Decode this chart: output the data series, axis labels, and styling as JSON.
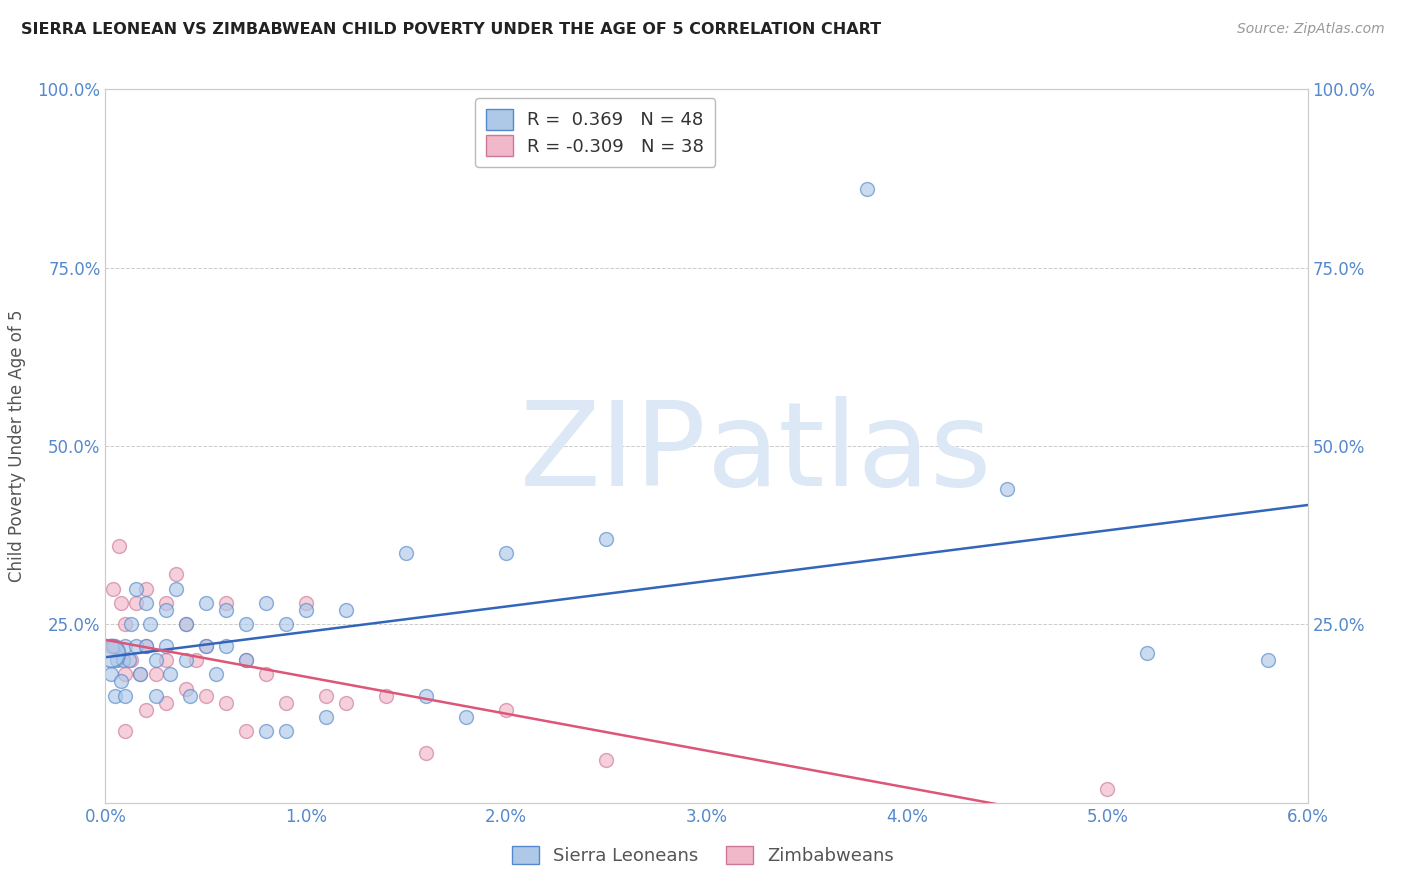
{
  "title": "SIERRA LEONEAN VS ZIMBABWEAN CHILD POVERTY UNDER THE AGE OF 5 CORRELATION CHART",
  "source": "Source: ZipAtlas.com",
  "label_blue": "Sierra Leoneans",
  "label_pink": "Zimbabweans",
  "ylabel": "Child Poverty Under the Age of 5",
  "xlim": [
    0.0,
    0.06
  ],
  "ylim": [
    0.0,
    1.0
  ],
  "xticks": [
    0.0,
    0.01,
    0.02,
    0.03,
    0.04,
    0.05,
    0.06
  ],
  "xticklabels": [
    "0.0%",
    "1.0%",
    "2.0%",
    "3.0%",
    "4.0%",
    "5.0%",
    "6.0%"
  ],
  "yticks": [
    0.0,
    0.25,
    0.5,
    0.75,
    1.0
  ],
  "yticklabels": [
    "",
    "25.0%",
    "50.0%",
    "75.0%",
    "100.0%"
  ],
  "blue_fill": "#aec8e8",
  "blue_edge": "#5588cc",
  "pink_fill": "#f0b8c8",
  "pink_edge": "#cc7799",
  "blue_line": "#3366bb",
  "pink_line": "#dd5577",
  "R_blue": 0.369,
  "N_blue": 48,
  "R_pink": -0.309,
  "N_pink": 38,
  "blue_x": [
    0.0003,
    0.0004,
    0.0005,
    0.0006,
    0.0008,
    0.0009,
    0.001,
    0.001,
    0.0012,
    0.0013,
    0.0015,
    0.0015,
    0.0017,
    0.002,
    0.002,
    0.0022,
    0.0025,
    0.0025,
    0.003,
    0.003,
    0.0032,
    0.0035,
    0.004,
    0.004,
    0.0042,
    0.005,
    0.005,
    0.0055,
    0.006,
    0.006,
    0.007,
    0.007,
    0.008,
    0.008,
    0.009,
    0.009,
    0.01,
    0.011,
    0.012,
    0.015,
    0.016,
    0.018,
    0.02,
    0.025,
    0.038,
    0.045,
    0.052,
    0.058
  ],
  "blue_y": [
    0.18,
    0.22,
    0.15,
    0.2,
    0.17,
    0.2,
    0.22,
    0.15,
    0.2,
    0.25,
    0.3,
    0.22,
    0.18,
    0.28,
    0.22,
    0.25,
    0.2,
    0.15,
    0.27,
    0.22,
    0.18,
    0.3,
    0.25,
    0.2,
    0.15,
    0.28,
    0.22,
    0.18,
    0.27,
    0.22,
    0.25,
    0.2,
    0.28,
    0.1,
    0.25,
    0.1,
    0.27,
    0.12,
    0.27,
    0.35,
    0.15,
    0.12,
    0.35,
    0.37,
    0.86,
    0.44,
    0.21,
    0.2
  ],
  "pink_x": [
    0.0003,
    0.0004,
    0.0005,
    0.0007,
    0.0008,
    0.001,
    0.001,
    0.001,
    0.0013,
    0.0015,
    0.0017,
    0.002,
    0.002,
    0.002,
    0.0025,
    0.003,
    0.003,
    0.003,
    0.0035,
    0.004,
    0.004,
    0.0045,
    0.005,
    0.005,
    0.006,
    0.006,
    0.007,
    0.007,
    0.008,
    0.009,
    0.01,
    0.011,
    0.012,
    0.014,
    0.016,
    0.02,
    0.025,
    0.05
  ],
  "pink_y": [
    0.22,
    0.3,
    0.22,
    0.36,
    0.28,
    0.25,
    0.18,
    0.1,
    0.2,
    0.28,
    0.18,
    0.3,
    0.22,
    0.13,
    0.18,
    0.28,
    0.2,
    0.14,
    0.32,
    0.25,
    0.16,
    0.2,
    0.22,
    0.15,
    0.28,
    0.14,
    0.2,
    0.1,
    0.18,
    0.14,
    0.28,
    0.15,
    0.14,
    0.15,
    0.07,
    0.13,
    0.06,
    0.02
  ],
  "tick_color": "#5588cc",
  "grid_color": "#cccccc",
  "title_color": "#222222",
  "source_color": "#999999",
  "ylabel_color": "#555555",
  "watermark_zip": "ZIP",
  "watermark_atlas": "atlas",
  "watermark_color": "#dce8f5",
  "bg_color": "#ffffff"
}
